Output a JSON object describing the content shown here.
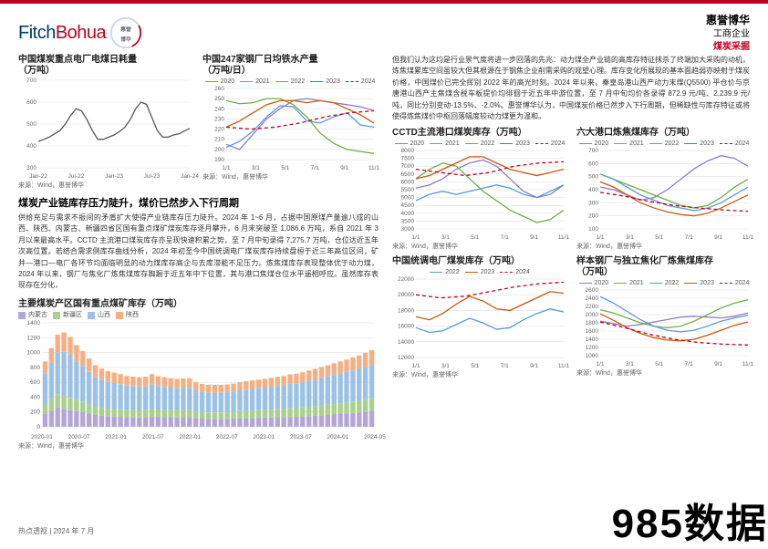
{
  "brand": {
    "fitch": "Fitch",
    "bohua": "Bohua",
    "cn_name": "惠誉博华",
    "seg": "工商企业",
    "sector": "煤炭采掘"
  },
  "footer": {
    "text": "热点透视 | 2024 年 7 月"
  },
  "watermark": "985数据",
  "colors": {
    "c2020": "#8e7cc3",
    "c2021": "#70ad47",
    "c2022": "#5b9bd5",
    "c2023": "#c65911",
    "c2024": "#c00020",
    "grid": "#d9d9d9",
    "axis": "#888888",
    "nmg": "#b4a7d6",
    "xj": "#a9d08e",
    "sx": "#9bc2e6",
    "shx": "#f4b084"
  },
  "chart_a": {
    "title": "中国煤炭重点电厂电煤日耗量",
    "unit": "（万吨）",
    "ylim": [
      300,
      700
    ],
    "ystep": 100,
    "xlabels": [
      "Jan-22",
      "Jul-22",
      "Jan-23",
      "Jul-23",
      "Jan-24"
    ],
    "values": [
      420,
      430,
      440,
      455,
      470,
      500,
      540,
      570,
      560,
      520,
      470,
      430,
      430,
      440,
      450,
      465,
      485,
      520,
      570,
      600,
      590,
      530,
      470,
      440,
      440,
      450,
      455,
      468,
      480
    ],
    "color": "#555555",
    "src": "来源：Wind，惠誉博华"
  },
  "chart_b": {
    "title": "中国247家钢厂日均铁水产量",
    "unit": "（万吨/日）",
    "ylim": [
      190,
      260
    ],
    "ystep": 10,
    "xlabels": [
      "1/1",
      "3/1",
      "5/1",
      "7/1",
      "9/1",
      "11/1"
    ],
    "series": {
      "2020": [
        205,
        200,
        215,
        230,
        240,
        248,
        250,
        248,
        246,
        244,
        242,
        238
      ],
      "2021": [
        248,
        245,
        246,
        250,
        250,
        244,
        232,
        216,
        206,
        200,
        198,
        196
      ],
      "2022": [
        202,
        208,
        218,
        232,
        243,
        242,
        228,
        226,
        232,
        236,
        224,
        222
      ],
      "2023": [
        222,
        228,
        236,
        244,
        248,
        248,
        246,
        248,
        246,
        240,
        234,
        226
      ],
      "2024": [
        222,
        220,
        222,
        226,
        232,
        236,
        238
      ]
    },
    "src": "来源：Wind，惠誉博华"
  },
  "section_title": "煤炭产业链库存压力陡升，煤价已然步入下行周期",
  "para_left": "供给充足与需求不振间的矛盾扩大使得产业链库存压力陡升。2024 年 1~6 月，占据中国原煤产量逾八成的山西、陕西、内蒙古、新疆四省区国有重点煤矿煤炭库存逐月攀升，6 月末突破至 1,086.6 万吨，系自 2021 年 3 月以来最高水平。CCTD 主流港口煤炭库存亦呈现快速积累之势，至 7 月中旬录得 7,275.7 万吨，仓位达近五年次高位置。若结合需求侧库存曲线分析，2024 年初至今中国统调电厂煤炭库存持续盘桓于近三年高位区间，矿井—港口—电厂各环节均面临明显的动力煤库存高企与去库滞能不足压力。炼焦煤库存表现整体优于动力煤，2024 年以来，钢厂与焦化厂炼焦煤库存踟蹰于近五年中下位置，其与港口焦煤仓位水平遥相呼应。虽然库存表现存在分化，",
  "chart_c": {
    "title": "主要煤炭产区国有重点煤矿库存（万吨）",
    "ylim": [
      0,
      1400
    ],
    "ystep": 200,
    "xlabels": [
      "2020-01",
      "2020-07",
      "2021-01",
      "2021-07",
      "2022-01",
      "2022-07",
      "2023-01",
      "2023-07",
      "2024-01",
      "2024-05"
    ],
    "cats": [
      "内蒙古",
      "新疆区",
      "山西",
      "陕西"
    ],
    "stacks": [
      [
        180,
        120,
        420,
        160
      ],
      [
        220,
        160,
        480,
        200
      ],
      [
        260,
        180,
        560,
        240
      ],
      [
        240,
        170,
        600,
        260
      ],
      [
        230,
        160,
        580,
        240
      ],
      [
        210,
        150,
        520,
        220
      ],
      [
        200,
        140,
        480,
        200
      ],
      [
        180,
        120,
        440,
        180
      ],
      [
        160,
        110,
        400,
        160
      ],
      [
        150,
        105,
        380,
        150
      ],
      [
        145,
        100,
        360,
        145
      ],
      [
        140,
        100,
        350,
        140
      ],
      [
        135,
        100,
        340,
        135
      ],
      [
        130,
        95,
        330,
        130
      ],
      [
        128,
        95,
        325,
        128
      ],
      [
        126,
        95,
        320,
        126
      ],
      [
        130,
        95,
        320,
        130
      ],
      [
        140,
        100,
        330,
        140
      ],
      [
        135,
        98,
        315,
        135
      ],
      [
        130,
        96,
        310,
        130
      ],
      [
        128,
        95,
        305,
        128
      ],
      [
        126,
        94,
        300,
        126
      ],
      [
        128,
        95,
        300,
        128
      ],
      [
        130,
        95,
        300,
        130
      ],
      [
        115,
        90,
        280,
        115
      ],
      [
        110,
        88,
        270,
        110
      ],
      [
        108,
        86,
        265,
        108
      ],
      [
        106,
        88,
        265,
        106
      ],
      [
        106,
        88,
        265,
        106
      ],
      [
        108,
        90,
        268,
        106
      ],
      [
        110,
        92,
        272,
        108
      ],
      [
        115,
        96,
        280,
        110
      ],
      [
        118,
        98,
        285,
        112
      ],
      [
        120,
        100,
        290,
        115
      ],
      [
        122,
        102,
        295,
        116
      ],
      [
        124,
        104,
        300,
        118
      ],
      [
        126,
        106,
        308,
        120
      ],
      [
        128,
        108,
        315,
        122
      ],
      [
        130,
        110,
        320,
        124
      ],
      [
        134,
        114,
        330,
        128
      ],
      [
        136,
        116,
        335,
        130
      ],
      [
        140,
        120,
        340,
        134
      ],
      [
        145,
        125,
        350,
        138
      ],
      [
        150,
        128,
        360,
        142
      ],
      [
        156,
        132,
        370,
        148
      ],
      [
        160,
        136,
        380,
        152
      ],
      [
        166,
        140,
        392,
        158
      ],
      [
        172,
        146,
        400,
        162
      ],
      [
        178,
        150,
        410,
        168
      ],
      [
        184,
        156,
        420,
        174
      ],
      [
        190,
        160,
        430,
        180
      ],
      [
        200,
        166,
        440,
        190
      ],
      [
        210,
        172,
        450,
        200
      ]
    ],
    "src": "来源：Wind，惠誉博华"
  },
  "para_right": "但我们认为这均是行业景气度将进一步回落的先兆：动力煤全产业链的高库存特征抹杀了终端加大采购的动机，炼焦煤累库空间虽较大但其根源在于钢焦企业削需采购的观望心理。库存变化所展现的基本面趋弱亦映射于煤炭价格，中国煤价已完全挥别 2022 年的高光时刻。2024 年以来，秦皇岛港山西产动力末煤(Q5500) 平仓价与京唐港山西产主焦煤含税车板提价均徘徊于近五年中游位置，至 7 月中旬均价各录得 872.9 元/吨、2,239.9 元/吨，同比分别变动-13.5%、-2.0%。惠誉博华认为，中国煤炭价格已然步入下行周期，但稀缺性与库存特征或将使得炼焦煤价中枢回落幅度较动力煤更为温和。",
  "chart_d": {
    "title": "CCTD主流港口煤炭库存（万吨）",
    "ylim": [
      3000,
      8000
    ],
    "ystep": 500,
    "xlabels": [
      "1/1",
      "3/1",
      "5/1",
      "7/1",
      "9/1",
      "11/1"
    ],
    "series": {
      "2020": [
        5600,
        5800,
        6200,
        6800,
        7200,
        7400,
        7000,
        6200,
        5400,
        5000,
        5200,
        5800
      ],
      "2021": [
        6200,
        6800,
        7200,
        7000,
        6200,
        5400,
        4800,
        4200,
        3800,
        3400,
        3600,
        4200
      ],
      "2022": [
        4800,
        5200,
        5400,
        5200,
        5400,
        5600,
        5800,
        5600,
        5200,
        5000,
        5400,
        5800
      ],
      "2023": [
        6200,
        6400,
        6800,
        7200,
        7600,
        7600,
        7200,
        6800,
        6600,
        6400,
        6600,
        6800
      ],
      "2024": [
        6800,
        6600,
        6400,
        6600,
        7000,
        7200,
        7275
      ]
    },
    "src": "来源：Wind，惠誉博华"
  },
  "chart_e": {
    "title": "六大港口炼焦煤库存（万吨）",
    "ylim": [
      100,
      700
    ],
    "ystep": 100,
    "xlabels": [
      "1/1",
      "3/1",
      "5/1",
      "7/1",
      "9/1",
      "11/1"
    ],
    "series": {
      "2020": [
        420,
        400,
        360,
        320,
        340,
        400,
        480,
        560,
        620,
        660,
        640,
        580
      ],
      "2021": [
        520,
        480,
        440,
        400,
        360,
        320,
        280,
        260,
        280,
        340,
        420,
        480
      ],
      "2022": [
        520,
        480,
        420,
        360,
        320,
        280,
        260,
        240,
        260,
        300,
        360,
        420
      ],
      "2023": [
        460,
        420,
        360,
        300,
        260,
        230,
        210,
        200,
        220,
        260,
        310,
        360
      ],
      "2024": [
        380,
        350,
        310,
        280,
        260,
        245,
        235
      ]
    },
    "src": "来源：Wind，惠誉博华"
  },
  "chart_f": {
    "title": "中国统调电厂煤炭库存（万吨）",
    "ylim": [
      12000,
      22000
    ],
    "ystep": 2000,
    "xlabels": [
      "1/1",
      "3/1",
      "5/1",
      "7/1",
      "9/1",
      "11/1"
    ],
    "series": {
      "2022": [
        15800,
        15200,
        15400,
        16200,
        17000,
        16400,
        15600,
        15800,
        16800,
        17600,
        18200,
        17800
      ],
      "2023": [
        17200,
        16800,
        17600,
        18800,
        19800,
        19200,
        18200,
        18000,
        18800,
        19600,
        20400,
        20200
      ],
      "2024": [
        20000,
        19600,
        19800,
        20400,
        21000,
        21400,
        21600
      ]
    },
    "src": "来源：Wind，惠誉博华"
  },
  "chart_g": {
    "title": "样本钢厂与独立焦化厂炼焦煤库存",
    "unit": "（万吨）",
    "ylim": [
      1000,
      2600
    ],
    "ystep": 200,
    "xlabels": [
      "1/1",
      "3/1",
      "5/1",
      "7/1",
      "9/1",
      "11/1"
    ],
    "series": {
      "2020": [
        1840,
        1780,
        1720,
        1760,
        1820,
        1880,
        1940,
        1960,
        1940,
        1920,
        1960,
        2040
      ],
      "2021": [
        2120,
        2040,
        1920,
        1800,
        1720,
        1680,
        1720,
        1840,
        2000,
        2160,
        2280,
        2360
      ],
      "2022": [
        2440,
        2280,
        2080,
        1880,
        1720,
        1620,
        1580,
        1620,
        1720,
        1840,
        1920,
        1980
      ],
      "2023": [
        2020,
        1860,
        1680,
        1540,
        1440,
        1380,
        1360,
        1400,
        1500,
        1620,
        1740,
        1820
      ],
      "2024": [
        1820,
        1680,
        1520,
        1400,
        1320,
        1280,
        1260
      ]
    },
    "src": "来源：Wind，惠誉博华"
  }
}
